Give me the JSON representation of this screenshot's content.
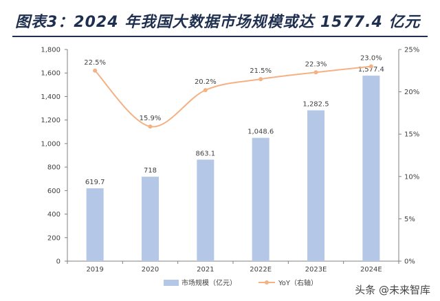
{
  "title": "图表3：2024 年我国大数据市场规模或达 1577.4 亿元",
  "watermark": "头条 @未来智库",
  "colors": {
    "bar": "#b4c7e7",
    "line": "#f4b183",
    "axis": "#7f7f7f",
    "text": "#404040",
    "title": "#1f2f4f"
  },
  "chart_data": {
    "type": "bar",
    "categories": [
      "2019",
      "2020",
      "2021",
      "2022E",
      "2023E",
      "2024E"
    ],
    "series": [
      {
        "name": "市场规模（亿元）",
        "type": "bar",
        "axis": "left",
        "values": [
          619.7,
          718,
          863.1,
          1048.6,
          1282.5,
          1577.4
        ],
        "labels": [
          "619.7",
          "718",
          "863.1",
          "1,048.6",
          "1,282.5",
          "1,577.4"
        ]
      },
      {
        "name": "YoY（右轴）",
        "type": "line",
        "axis": "right",
        "values": [
          22.5,
          15.9,
          20.2,
          21.5,
          22.3,
          23.0
        ],
        "labels": [
          "22.5%",
          "15.9%",
          "20.2%",
          "21.5%",
          "22.3%",
          "23.0%"
        ]
      }
    ],
    "y_left": {
      "min": 0,
      "max": 1800,
      "ticks": [
        "0",
        "200",
        "400",
        "600",
        "800",
        "1,000",
        "1,200",
        "1,400",
        "1,600",
        "1,800"
      ]
    },
    "y_right": {
      "min": 0,
      "max": 25,
      "ticks": [
        "0%",
        "5%",
        "10%",
        "15%",
        "20%",
        "25%"
      ]
    },
    "grid": false,
    "legend": "bottom"
  }
}
